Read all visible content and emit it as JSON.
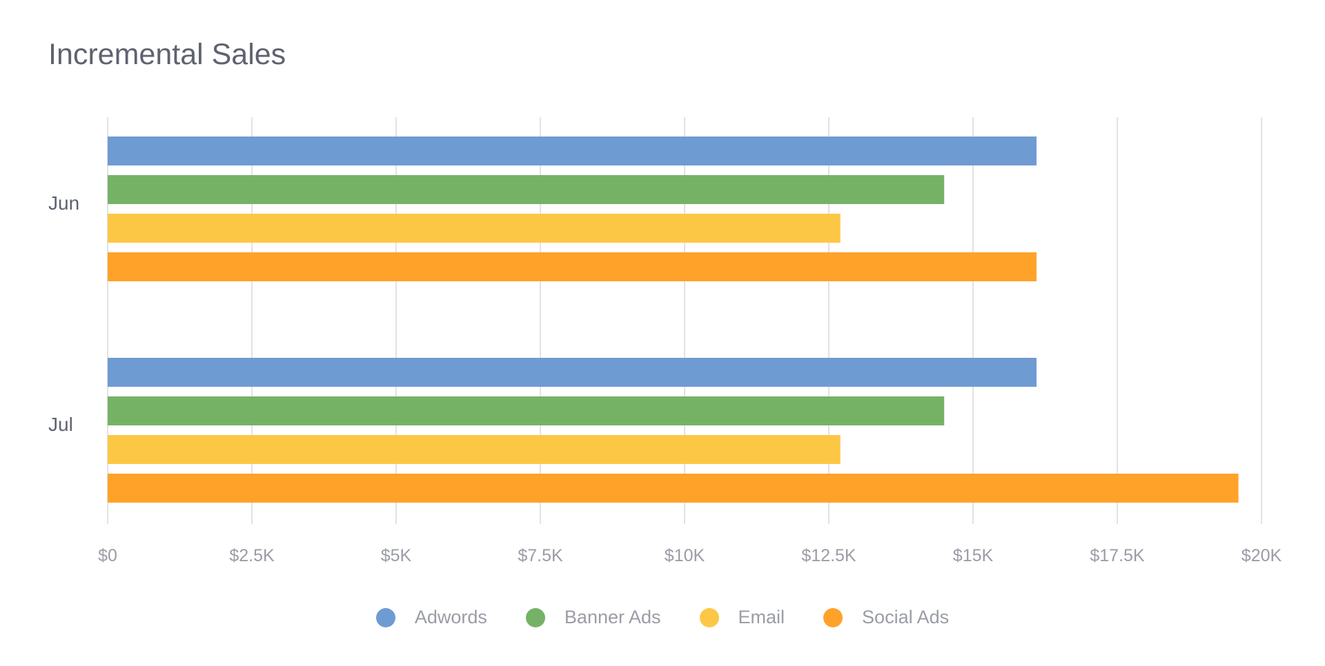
{
  "chart_data": {
    "type": "bar",
    "orientation": "horizontal",
    "title": "Incremental Sales",
    "categories": [
      "Jun",
      "Jul"
    ],
    "series": [
      {
        "name": "Adwords",
        "color": "#6f9bd3",
        "values": [
          16100,
          16100
        ]
      },
      {
        "name": "Banner Ads",
        "color": "#75b266",
        "values": [
          14500,
          14500
        ]
      },
      {
        "name": "Email",
        "color": "#fdc746",
        "values": [
          12700,
          12700
        ]
      },
      {
        "name": "Social Ads",
        "color": "#ffa22a",
        "values": [
          16100,
          19600
        ]
      }
    ],
    "xlim": [
      0,
      20000
    ],
    "xticks": [
      0,
      2500,
      5000,
      7500,
      10000,
      12500,
      15000,
      17500,
      20000
    ],
    "xtick_labels": [
      "$0",
      "$2.5K",
      "$5K",
      "$7.5K",
      "$10K",
      "$12.5K",
      "$15K",
      "$17.5K",
      "$20K"
    ],
    "grid": true,
    "legend_position": "bottom-center",
    "colors": {
      "grid": "#e2e2e4",
      "tick_label": "#9a9ca6",
      "category_label": "#5f6270"
    }
  }
}
